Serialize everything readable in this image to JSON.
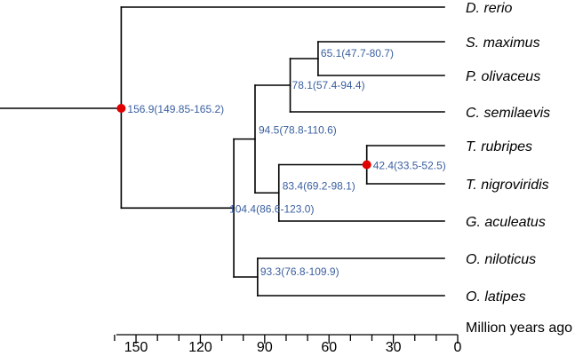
{
  "tree": {
    "species": [
      {
        "key": "drerio",
        "label": "D. rerio"
      },
      {
        "key": "smaximus",
        "label": "S. maximus"
      },
      {
        "key": "polivaceus",
        "label": "P. olivaceus"
      },
      {
        "key": "csemilaevis",
        "label": "C. semilaevis"
      },
      {
        "key": "trubripes",
        "label": "T. rubripes"
      },
      {
        "key": "tnigroviridis",
        "label": "T. nigroviridis"
      },
      {
        "key": "gaculeatus",
        "label": "G. aculeatus"
      },
      {
        "key": "oniloticus",
        "label": "O. niloticus"
      },
      {
        "key": "olatipes",
        "label": "O. latipes"
      }
    ],
    "nodes": [
      {
        "key": "root",
        "age": 156.9,
        "label": "156.9(149.85-165.2)",
        "calibrated": true
      },
      {
        "key": "perco",
        "age": 104.4,
        "label": "104.4(86.6-123.0)",
        "calibrated": false
      },
      {
        "key": "n945",
        "age": 94.5,
        "label": "94.5(78.8-110.6)",
        "calibrated": false
      },
      {
        "key": "flat",
        "age": 78.1,
        "label": "78.1(57.4-94.4)",
        "calibrated": false
      },
      {
        "key": "smpo",
        "age": 65.1,
        "label": "65.1(47.7-80.7)",
        "calibrated": false
      },
      {
        "key": "n834",
        "age": 83.4,
        "label": "83.4(69.2-98.1)",
        "calibrated": false
      },
      {
        "key": "puffer",
        "age": 42.4,
        "label": "42.4(33.5-52.5)",
        "calibrated": true
      },
      {
        "key": "n933",
        "age": 93.3,
        "label": "93.3(76.8-109.9)",
        "calibrated": false
      }
    ]
  },
  "axis": {
    "title": "Million years ago",
    "ticks": [
      "150",
      "120",
      "90",
      "60",
      "30",
      "0"
    ],
    "tick_values": [
      150,
      120,
      90,
      60,
      30,
      0
    ],
    "minor_step": 10,
    "range": [
      160,
      0
    ]
  }
}
